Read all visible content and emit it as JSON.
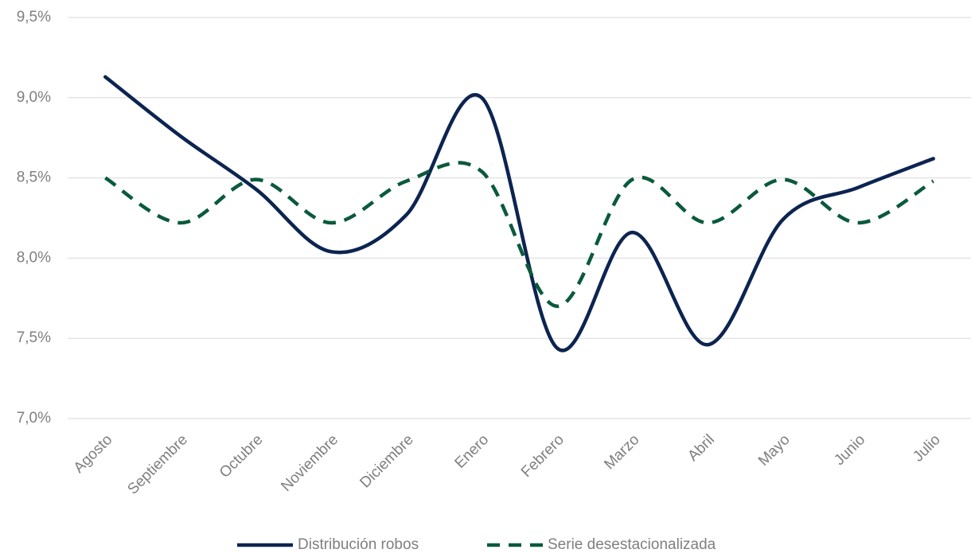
{
  "chart_data": {
    "type": "line",
    "categories": [
      "Agosto",
      "Septiembre",
      "Octubre",
      "Noviembre",
      "Diciembre",
      "Enero",
      "Febrero",
      "Marzo",
      "Abril",
      "Mayo",
      "Junio",
      "Julio"
    ],
    "series": [
      {
        "name": "Distribución robos",
        "color": "#0c2450",
        "dash": false,
        "values": [
          9.13,
          8.76,
          8.43,
          8.04,
          8.27,
          9.0,
          7.44,
          8.16,
          7.46,
          8.24,
          8.44,
          8.62
        ]
      },
      {
        "name": "Serie desestacionalizada",
        "color": "#0a5a3c",
        "dash": true,
        "values": [
          8.5,
          8.22,
          8.49,
          8.22,
          8.48,
          8.54,
          7.7,
          8.49,
          8.22,
          8.49,
          8.22,
          8.48
        ]
      }
    ],
    "ylim": [
      7.0,
      9.5
    ],
    "yticks": [
      {
        "value": 7.0,
        "label": "7,0%"
      },
      {
        "value": 7.5,
        "label": "7,5%"
      },
      {
        "value": 8.0,
        "label": "8,0%"
      },
      {
        "value": 8.5,
        "label": "8,5%"
      },
      {
        "value": 9.0,
        "label": "9,0%"
      },
      {
        "value": 9.5,
        "label": "9,5%"
      }
    ],
    "grid": true,
    "smooth": true,
    "legend": "bottom"
  }
}
